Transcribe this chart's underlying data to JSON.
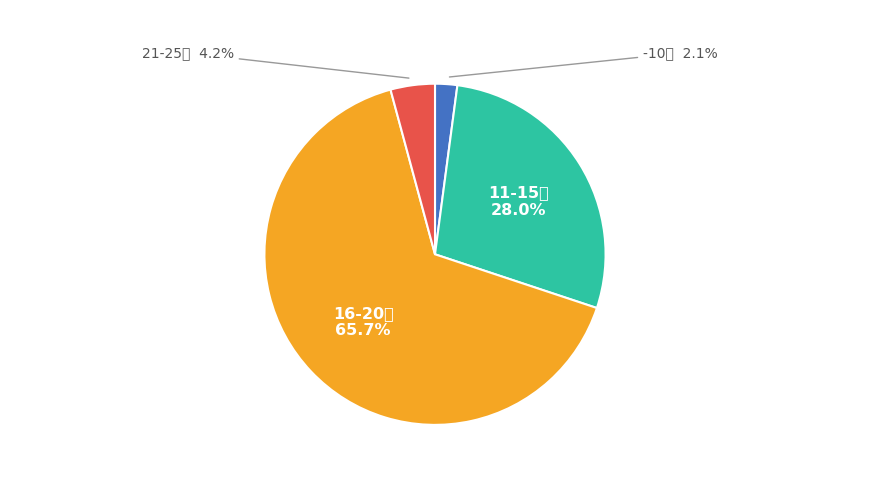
{
  "slices": [
    {
      "label": "-10歳",
      "pct": 2.1,
      "color": "#4472C4"
    },
    {
      "label": "11-15歳",
      "pct": 28.0,
      "color": "#2DC5A2"
    },
    {
      "label": "16-20歳",
      "pct": 65.7,
      "color": "#F5A623"
    },
    {
      "label": "21-25歳",
      "pct": 4.2,
      "color": "#E8534A"
    }
  ],
  "background_color": "#ffffff",
  "start_angle": 90,
  "figsize": [
    8.7,
    4.83
  ],
  "dpi": 100,
  "label_color_outside": "#555555",
  "label_color_inside": "#ffffff",
  "line_color": "#999999"
}
